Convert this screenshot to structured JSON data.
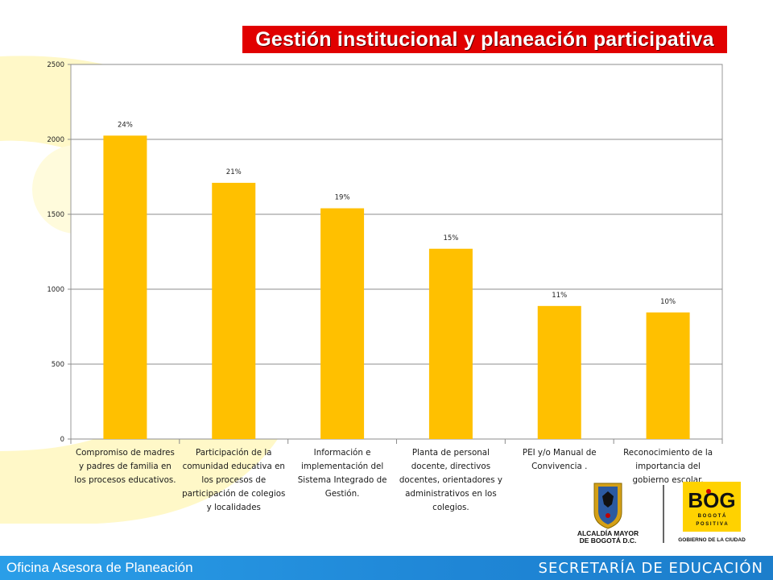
{
  "header": {
    "title": "Gestión institucional y planeación participativa"
  },
  "chart_data": {
    "type": "bar",
    "categories": [
      "Compromiso de madres y padres de familia en los procesos educativos.",
      "Participación de la comunidad educativa en los procesos de participación de colegios y localidades",
      "Información e implementación del Sistema Integrado de Gestión.",
      "Planta de personal docente, directivos docentes, orientadores y administrativos en los colegios.",
      "PEI y/o Manual de Convivencia .",
      "Reconocimiento de la importancia del gobierno escolar."
    ],
    "category_lines": [
      [
        "Compromiso de madres",
        "y padres de familia en",
        "los procesos educativos."
      ],
      [
        "Participación de la",
        "comunidad educativa en",
        "los procesos de",
        "participación de colegios",
        "y localidades"
      ],
      [
        "Información e",
        "implementación del",
        "Sistema Integrado de",
        "Gestión."
      ],
      [
        "Planta de personal",
        "docente, directivos",
        "docentes, orientadores y",
        "administrativos en los",
        "colegios."
      ],
      [
        "PEI y/o Manual de",
        "Convivencia ."
      ],
      [
        "Reconocimiento de la",
        "importancia del",
        "gobierno escolar."
      ]
    ],
    "values": [
      2025,
      1710,
      1540,
      1270,
      888,
      845
    ],
    "data_labels": [
      "24%",
      "21%",
      "19%",
      "15%",
      "11%",
      "10%"
    ],
    "yticks": [
      0,
      500,
      1000,
      1500,
      2000,
      2500
    ],
    "ylim": [
      0,
      2500
    ],
    "grid": true,
    "bar_color": "#ffc000",
    "xlabel": "",
    "ylabel": ""
  },
  "logos": {
    "alcaldia_line1": "ALCALDÍA MAYOR",
    "alcaldia_line2": "DE BOGOTÁ D.C.",
    "bog_text": "BOG",
    "bogota_text": "B O G O T Á",
    "positiva_text": "P O S I T I V A",
    "gobierno_text": "GOBIERNO DE LA CIUDAD"
  },
  "footer": {
    "left": "Oficina Asesora de Planeación",
    "right": "SECRETARÍA DE EDUCACIÓN"
  },
  "colors": {
    "title_bg": "#e10000",
    "footer_bg": "#1f86d6",
    "deco_yellow": "#fff8c8"
  }
}
